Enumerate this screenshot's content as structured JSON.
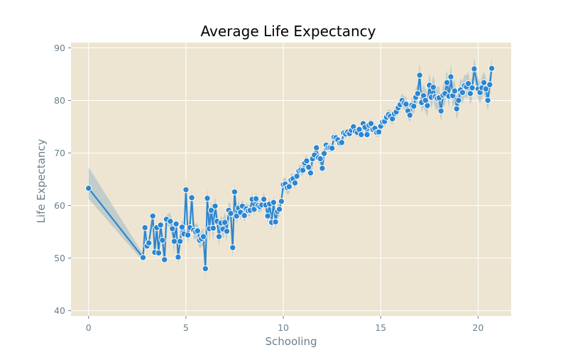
{
  "chart_data": {
    "type": "line",
    "title": "Average Life Expectancy",
    "xlabel": "Schooling",
    "ylabel": "Life Expectancy",
    "xlim": [
      -0.9,
      21.7
    ],
    "ylim": [
      39,
      91
    ],
    "x_ticks": [
      0,
      5,
      10,
      15,
      20
    ],
    "y_ticks": [
      40,
      50,
      60,
      70,
      80,
      90
    ],
    "grid": true,
    "legend": "none",
    "colors": {
      "background": "#ede5d1",
      "grid": "#ffffff",
      "line": "#2c86d0",
      "band": "#9ab9c7",
      "marker_edge": "#ffffff"
    },
    "series": [
      {
        "x": [
          0.0,
          2.8,
          2.9,
          3.0,
          3.1,
          3.3,
          3.4,
          3.5,
          3.6,
          3.7,
          3.8,
          3.9,
          4.0,
          4.2,
          4.3,
          4.4,
          4.5,
          4.6,
          4.7,
          4.8,
          4.9,
          5.0,
          5.1,
          5.2,
          5.3,
          5.4,
          5.5,
          5.6,
          5.7,
          5.8,
          5.9,
          6.0,
          6.1,
          6.2,
          6.3,
          6.4,
          6.5,
          6.6,
          6.7,
          6.8,
          6.9,
          7.0,
          7.1,
          7.2,
          7.3,
          7.4,
          7.5,
          7.6,
          7.7,
          7.8,
          7.9,
          8.0,
          8.1,
          8.2,
          8.3,
          8.4,
          8.5,
          8.6,
          8.7,
          8.8,
          8.9,
          9.0,
          9.1,
          9.2,
          9.3,
          9.4,
          9.5,
          9.6,
          9.7,
          9.8,
          9.9,
          10.0,
          10.1,
          10.2,
          10.3,
          10.4,
          10.5,
          10.6,
          10.7,
          10.8,
          10.9,
          11.0,
          11.1,
          11.2,
          11.3,
          11.4,
          11.5,
          11.6,
          11.7,
          11.8,
          11.9,
          12.0,
          12.1,
          12.2,
          12.3,
          12.4,
          12.5,
          12.6,
          12.7,
          12.8,
          12.9,
          13.0,
          13.1,
          13.2,
          13.3,
          13.4,
          13.5,
          13.6,
          13.7,
          13.8,
          13.9,
          14.0,
          14.1,
          14.2,
          14.3,
          14.4,
          14.5,
          14.6,
          14.7,
          14.8,
          14.9,
          15.0,
          15.1,
          15.2,
          15.3,
          15.4,
          15.5,
          15.6,
          15.7,
          15.8,
          15.9,
          16.0,
          16.1,
          16.2,
          16.3,
          16.4,
          16.5,
          16.6,
          16.7,
          16.8,
          16.9,
          17.0,
          17.1,
          17.2,
          17.3,
          17.4,
          17.5,
          17.6,
          17.7,
          17.8,
          17.9,
          18.0,
          18.1,
          18.2,
          18.3,
          18.4,
          18.5,
          18.6,
          18.7,
          18.8,
          18.9,
          19.0,
          19.1,
          19.2,
          19.3,
          19.4,
          19.5,
          19.6,
          19.7,
          19.8,
          20.0,
          20.1,
          20.2,
          20.3,
          20.4,
          20.5,
          20.6,
          20.7
        ],
        "y": [
          63.3,
          50.1,
          55.8,
          52.3,
          52.9,
          58.0,
          51.1,
          55.8,
          51.0,
          56.3,
          53.4,
          49.7,
          57.4,
          57.0,
          55.6,
          53.2,
          56.5,
          50.2,
          53.2,
          55.9,
          54.6,
          63.0,
          54.4,
          55.8,
          61.5,
          55.3,
          55.0,
          55.2,
          53.4,
          53.7,
          54.1,
          48.0,
          61.4,
          55.6,
          59.1,
          55.7,
          59.9,
          57.0,
          54.1,
          56.7,
          55.5,
          56.8,
          55.1,
          59.1,
          58.5,
          52.0,
          62.6,
          58.0,
          59.5,
          58.7,
          59.9,
          58.1,
          59.4,
          59.0,
          59.1,
          61.2,
          59.3,
          61.3,
          60.0,
          59.8,
          60.1,
          61.2,
          60.1,
          58.0,
          60.3,
          56.8,
          60.6,
          56.9,
          58.9,
          59.3,
          60.8,
          64.0,
          64.1,
          63.4,
          63.6,
          64.9,
          65.1,
          64.3,
          65.6,
          66.6,
          66.8,
          66.7,
          68.1,
          68.5,
          67.3,
          66.2,
          68.9,
          69.6,
          71.0,
          69.1,
          68.9,
          67.1,
          69.9,
          71.5,
          71.0,
          71.0,
          70.9,
          73.0,
          72.9,
          72.5,
          71.9,
          72.0,
          73.8,
          73.6,
          74.0,
          73.7,
          74.3,
          75.0,
          74.1,
          73.9,
          74.5,
          73.5,
          75.6,
          74.9,
          73.5,
          75.3,
          75.6,
          74.5,
          74.7,
          73.9,
          74.0,
          75.1,
          75.9,
          76.0,
          76.8,
          77.3,
          77.0,
          76.5,
          77.5,
          77.8,
          78.6,
          79.2,
          80.0,
          79.5,
          79.3,
          78.0,
          77.2,
          79.1,
          78.9,
          80.6,
          81.3,
          84.8,
          79.6,
          80.9,
          80.0,
          79.0,
          82.9,
          80.6,
          82.5,
          80.7,
          80.4,
          80.5,
          78.0,
          81.0,
          81.3,
          83.4,
          80.8,
          84.5,
          80.9,
          81.8,
          78.4,
          80.0,
          82.0,
          81.5,
          82.8,
          82.6,
          83.2,
          81.3,
          82.4,
          86.0,
          82.2,
          81.5,
          82.4,
          83.4,
          82.2,
          80.0,
          83.0,
          86.1
        ],
        "ci_low": [
          61.3,
          49.4,
          55.0,
          51.5,
          52.1,
          57.3,
          50.3,
          55.0,
          50.0,
          55.3,
          52.2,
          48.5,
          56.6,
          55.4,
          54.0,
          51.0,
          55.5,
          48.8,
          51.8,
          54.4,
          53.0,
          61.0,
          52.8,
          54.5,
          59.7,
          53.6,
          53.6,
          53.7,
          51.8,
          52.2,
          52.4,
          45.8,
          59.4,
          53.0,
          57.4,
          53.0,
          58.1,
          55.1,
          52.3,
          55.3,
          53.6,
          54.9,
          53.2,
          57.5,
          56.8,
          49.8,
          61.1,
          56.4,
          58.2,
          57.3,
          58.6,
          56.9,
          58.3,
          57.9,
          58.0,
          60.0,
          58.1,
          60.1,
          58.9,
          58.7,
          59.0,
          59.9,
          58.8,
          56.6,
          59.0,
          55.3,
          59.3,
          55.5,
          57.6,
          58.0,
          59.6,
          62.7,
          62.9,
          62.1,
          62.3,
          63.8,
          64.1,
          63.2,
          64.6,
          65.6,
          65.8,
          65.7,
          67.1,
          67.4,
          66.1,
          65.0,
          67.9,
          68.7,
          70.1,
          68.2,
          67.9,
          66.1,
          69.0,
          70.7,
          70.2,
          70.2,
          70.1,
          72.2,
          72.1,
          71.7,
          71.1,
          71.2,
          73.0,
          72.8,
          73.3,
          72.9,
          73.5,
          74.2,
          73.3,
          73.1,
          73.7,
          72.7,
          74.8,
          74.1,
          72.7,
          74.4,
          74.7,
          73.6,
          73.8,
          73.0,
          73.1,
          74.1,
          74.9,
          75.0,
          75.8,
          76.3,
          75.9,
          75.4,
          76.4,
          76.7,
          77.4,
          77.9,
          78.7,
          78.2,
          77.9,
          76.6,
          75.8,
          77.6,
          77.4,
          78.9,
          79.5,
          82.4,
          77.6,
          78.7,
          77.8,
          76.8,
          80.5,
          78.4,
          80.1,
          78.4,
          78.2,
          78.3,
          76.0,
          78.8,
          79.1,
          81.0,
          78.6,
          82.0,
          78.6,
          79.5,
          76.4,
          77.9,
          79.8,
          79.4,
          80.7,
          80.4,
          81.0,
          79.3,
          80.3,
          84.0,
          80.2,
          79.5,
          80.3,
          81.3,
          80.1,
          78.0,
          80.9,
          84.1
        ],
        "ci_high": [
          67.3,
          50.8,
          56.6,
          53.1,
          53.7,
          58.7,
          51.9,
          56.6,
          52.0,
          57.3,
          54.6,
          50.9,
          58.2,
          58.6,
          57.2,
          55.4,
          57.5,
          51.6,
          54.6,
          57.4,
          56.2,
          65.0,
          56.0,
          57.1,
          63.3,
          57.0,
          56.4,
          56.7,
          55.0,
          55.2,
          55.8,
          50.2,
          63.4,
          58.2,
          60.8,
          58.4,
          61.7,
          58.9,
          55.9,
          58.1,
          57.4,
          58.7,
          57.0,
          60.7,
          60.2,
          54.2,
          64.1,
          59.6,
          60.8,
          60.1,
          61.2,
          59.3,
          60.5,
          60.1,
          60.2,
          62.4,
          60.5,
          62.5,
          61.1,
          60.9,
          61.2,
          62.5,
          61.4,
          59.4,
          61.6,
          58.3,
          61.9,
          58.3,
          60.2,
          60.6,
          62.0,
          65.3,
          65.3,
          64.7,
          64.9,
          66.0,
          66.1,
          65.4,
          66.6,
          67.6,
          67.8,
          67.7,
          69.1,
          69.6,
          68.5,
          67.4,
          69.9,
          70.5,
          71.9,
          70.0,
          69.9,
          68.1,
          70.8,
          72.3,
          71.8,
          71.8,
          71.7,
          73.8,
          73.7,
          73.3,
          72.7,
          72.8,
          74.6,
          74.4,
          74.7,
          74.5,
          75.1,
          75.8,
          74.9,
          74.7,
          75.3,
          74.3,
          76.4,
          75.7,
          74.3,
          76.2,
          76.5,
          75.4,
          75.6,
          74.8,
          74.9,
          76.1,
          76.9,
          77.0,
          77.8,
          78.3,
          78.1,
          77.6,
          78.6,
          78.9,
          79.8,
          80.5,
          81.3,
          80.8,
          80.7,
          79.4,
          78.6,
          80.6,
          80.4,
          82.3,
          83.1,
          87.2,
          81.6,
          83.1,
          82.2,
          81.2,
          85.3,
          82.8,
          84.9,
          83.0,
          82.6,
          82.7,
          80.0,
          83.2,
          83.5,
          85.8,
          83.0,
          87.0,
          83.2,
          84.1,
          80.4,
          82.1,
          84.2,
          83.6,
          84.9,
          84.8,
          85.4,
          83.3,
          84.5,
          88.0,
          84.2,
          83.5,
          84.5,
          85.5,
          84.3,
          82.0,
          85.1,
          88.1
        ]
      }
    ]
  }
}
